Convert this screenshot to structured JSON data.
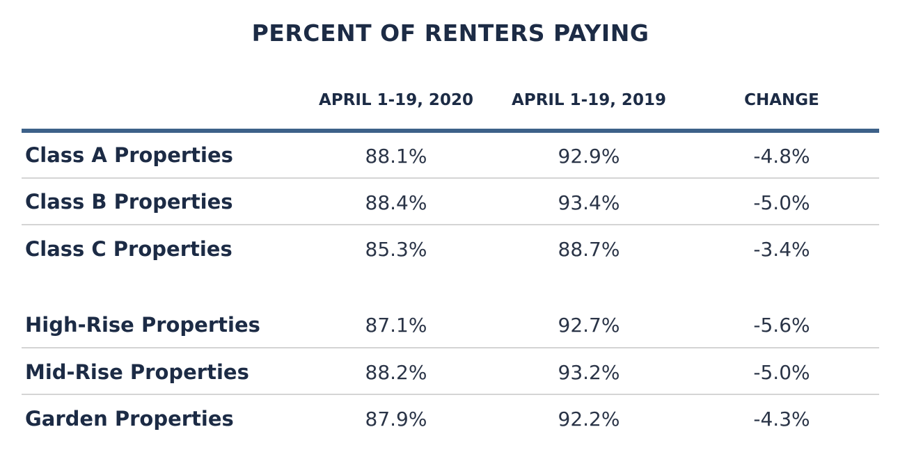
{
  "title": "PERCENT OF RENTERS PAYING",
  "columns": [
    "APRIL 1-19, 2020",
    "APRIL 1-19, 2019",
    "CHANGE"
  ],
  "rows": [
    {
      "label": "Class A Properties",
      "y2020": "88.1%",
      "y2019": "92.9%",
      "change": "-4.8%"
    },
    {
      "label": "Class B Properties",
      "y2020": "88.4%",
      "y2019": "93.4%",
      "change": "-5.0%"
    },
    {
      "label": "Class C Properties",
      "y2020": "85.3%",
      "y2019": "88.7%",
      "change": "-3.4%"
    },
    {
      "label": "High-Rise Properties",
      "y2020": "87.1%",
      "y2019": "92.7%",
      "change": "-5.6%"
    },
    {
      "label": "Mid-Rise Properties",
      "y2020": "88.2%",
      "y2019": "93.2%",
      "change": "-5.0%"
    },
    {
      "label": "Garden Properties",
      "y2020": "87.9%",
      "y2019": "92.2%",
      "change": "-4.3%"
    }
  ],
  "colors": {
    "text": "#1c2b45",
    "header_rule": "#3d6189",
    "row_rule": "#d4d4d4"
  }
}
